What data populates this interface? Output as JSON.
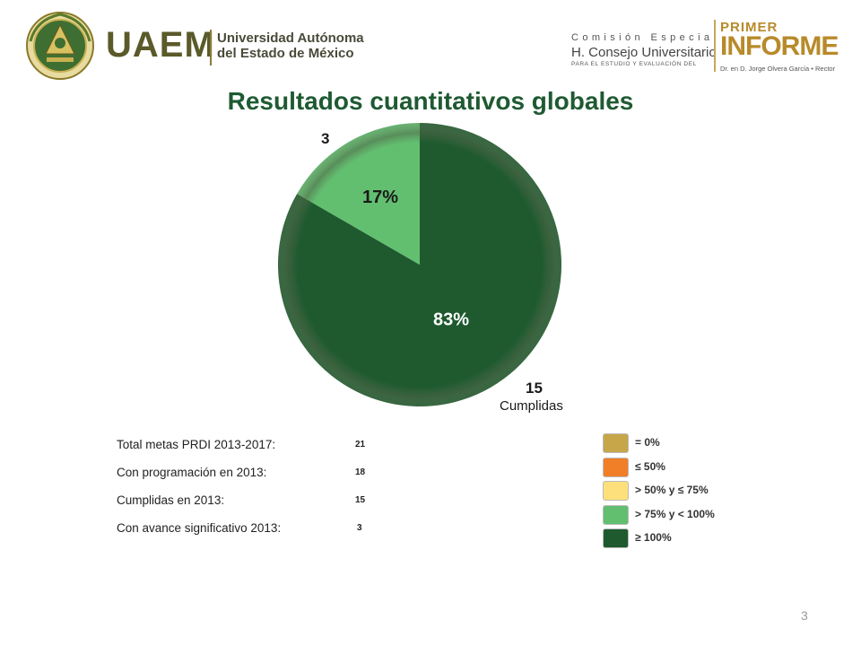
{
  "header": {
    "left_logo": {
      "acronym": "UAEM",
      "name_line1": "Universidad Autónoma",
      "name_line2": "del Estado de México"
    },
    "right_logo": {
      "line1": "Comisión Especial",
      "line2": "H. Consejo Universitario",
      "line3": "PARA EL ESTUDIO Y EVALUACIÓN DEL",
      "primer": "PRIMER",
      "informe": "INFORME",
      "rector": "Dr. en D. Jorge Olvera García • Rector"
    }
  },
  "title": "Resultados cuantitativos globales",
  "colors": {
    "title": "#1f5a32",
    "dark_green": "#1e5a2e",
    "light_green": "#62bf70",
    "shadow": "#5b6e52"
  },
  "chart_data": {
    "type": "pie",
    "slices": [
      {
        "label": "Cumplidas",
        "value": 15,
        "percent_label": "83%",
        "count_label": "15",
        "color": "#1e5a2e"
      },
      {
        "label": "",
        "value": 3,
        "percent_label": "17%",
        "count_label": "3",
        "color": "#62bf70"
      }
    ]
  },
  "stats": [
    {
      "label": "Total metas PRDI 2013-2017:",
      "value": "21"
    },
    {
      "label": "Con programación en 2013:",
      "value": "18"
    },
    {
      "label": "Cumplidas en 2013:",
      "value": "15"
    },
    {
      "label": "Con avance significativo 2013:",
      "value": "3"
    }
  ],
  "legend": [
    {
      "label": "= 0%",
      "color": "#c7a64a"
    },
    {
      "label": "≤ 50%",
      "color": "#f07f28"
    },
    {
      "label": "> 50% y ≤ 75%",
      "color": "#fde07c"
    },
    {
      "label": "> 75% y < 100%",
      "color": "#62bf70"
    },
    {
      "label": "≥ 100%",
      "color": "#1e5a2e"
    }
  ],
  "page_number": "3"
}
